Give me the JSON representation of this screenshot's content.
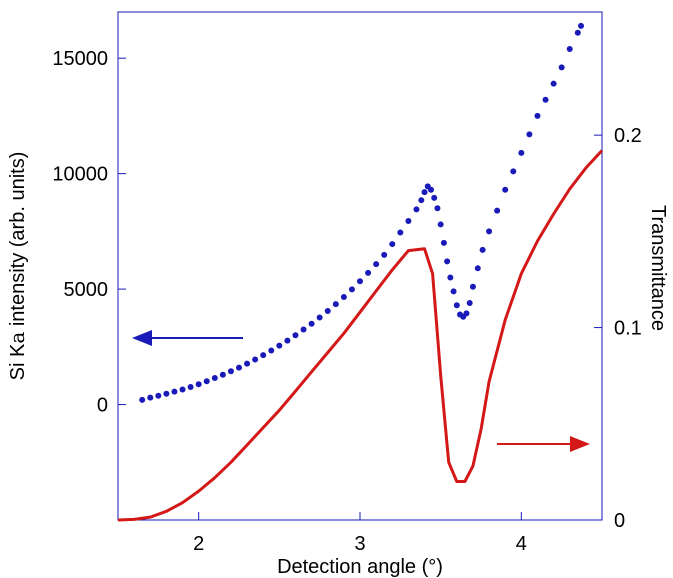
{
  "chart_data": {
    "type": "scatter+line",
    "xlabel": "Detection angle (°)",
    "ylabel_left_parts": [
      "Si K",
      "a",
      " intensity (arb. units)"
    ],
    "ylabel_right": "Transmittance",
    "xlim": [
      1.5,
      4.5
    ],
    "ylim_left": [
      -5000,
      17000
    ],
    "ylim_right": [
      0,
      0.264
    ],
    "x_ticks": [
      2,
      3,
      4
    ],
    "x_tick_labels": [
      "2",
      "3",
      "4"
    ],
    "y_left_ticks": [
      0,
      5000,
      10000,
      15000
    ],
    "y_left_tick_labels": [
      "0",
      "5000",
      "10000",
      "15000"
    ],
    "y_right_ticks": [
      0,
      0.1,
      0.2
    ],
    "y_right_tick_labels": [
      "0",
      "0.1",
      "0.2"
    ],
    "grid": false,
    "series": [
      {
        "kind": "scatter",
        "axis": "left",
        "color": "#1a1ab8",
        "points": [
          [
            1.65,
            200
          ],
          [
            1.7,
            300
          ],
          [
            1.75,
            380
          ],
          [
            1.8,
            470
          ],
          [
            1.85,
            560
          ],
          [
            1.9,
            650
          ],
          [
            1.95,
            760
          ],
          [
            2.0,
            880
          ],
          [
            2.05,
            1010
          ],
          [
            2.1,
            1150
          ],
          [
            2.15,
            1290
          ],
          [
            2.2,
            1440
          ],
          [
            2.25,
            1600
          ],
          [
            2.3,
            1770
          ],
          [
            2.35,
            1950
          ],
          [
            2.4,
            2140
          ],
          [
            2.45,
            2340
          ],
          [
            2.5,
            2550
          ],
          [
            2.55,
            2770
          ],
          [
            2.6,
            3000
          ],
          [
            2.65,
            3250
          ],
          [
            2.7,
            3500
          ],
          [
            2.75,
            3770
          ],
          [
            2.8,
            4050
          ],
          [
            2.85,
            4350
          ],
          [
            2.9,
            4660
          ],
          [
            2.95,
            4990
          ],
          [
            3.0,
            5340
          ],
          [
            3.05,
            5700
          ],
          [
            3.1,
            6080
          ],
          [
            3.15,
            6480
          ],
          [
            3.2,
            6950
          ],
          [
            3.25,
            7450
          ],
          [
            3.3,
            7950
          ],
          [
            3.35,
            8450
          ],
          [
            3.38,
            8850
          ],
          [
            3.4,
            9200
          ],
          [
            3.42,
            9450
          ],
          [
            3.44,
            9300
          ],
          [
            3.46,
            8950
          ],
          [
            3.48,
            8500
          ],
          [
            3.5,
            7800
          ],
          [
            3.52,
            7000
          ],
          [
            3.54,
            6200
          ],
          [
            3.56,
            5500
          ],
          [
            3.58,
            4900
          ],
          [
            3.6,
            4300
          ],
          [
            3.62,
            3900
          ],
          [
            3.64,
            3800
          ],
          [
            3.66,
            3950
          ],
          [
            3.68,
            4400
          ],
          [
            3.7,
            5100
          ],
          [
            3.73,
            5900
          ],
          [
            3.76,
            6700
          ],
          [
            3.8,
            7500
          ],
          [
            3.85,
            8400
          ],
          [
            3.9,
            9300
          ],
          [
            3.95,
            10100
          ],
          [
            4.0,
            10900
          ],
          [
            4.05,
            11700
          ],
          [
            4.1,
            12500
          ],
          [
            4.15,
            13200
          ],
          [
            4.2,
            13900
          ],
          [
            4.25,
            14600
          ],
          [
            4.3,
            15400
          ],
          [
            4.35,
            16100
          ],
          [
            4.37,
            16400
          ]
        ]
      },
      {
        "kind": "line",
        "axis": "right",
        "color": "#d41818",
        "points": [
          [
            1.5,
            0.0
          ],
          [
            1.6,
            0.0003
          ],
          [
            1.7,
            0.0015
          ],
          [
            1.8,
            0.0045
          ],
          [
            1.9,
            0.009
          ],
          [
            2.0,
            0.015
          ],
          [
            2.1,
            0.022
          ],
          [
            2.2,
            0.03
          ],
          [
            2.3,
            0.039
          ],
          [
            2.4,
            0.048
          ],
          [
            2.5,
            0.057
          ],
          [
            2.6,
            0.067
          ],
          [
            2.7,
            0.077
          ],
          [
            2.8,
            0.087
          ],
          [
            2.9,
            0.097
          ],
          [
            3.0,
            0.108
          ],
          [
            3.1,
            0.119
          ],
          [
            3.2,
            0.13
          ],
          [
            3.3,
            0.14
          ],
          [
            3.4,
            0.141
          ],
          [
            3.45,
            0.128
          ],
          [
            3.5,
            0.075
          ],
          [
            3.55,
            0.03
          ],
          [
            3.6,
            0.02
          ],
          [
            3.65,
            0.02
          ],
          [
            3.7,
            0.028
          ],
          [
            3.75,
            0.047
          ],
          [
            3.8,
            0.072
          ],
          [
            3.9,
            0.104
          ],
          [
            4.0,
            0.128
          ],
          [
            4.1,
            0.145
          ],
          [
            4.2,
            0.159
          ],
          [
            4.3,
            0.172
          ],
          [
            4.4,
            0.183
          ],
          [
            4.5,
            0.192
          ]
        ]
      }
    ],
    "annotations": [
      {
        "type": "arrow",
        "direction": "left",
        "color": "#1a1ab8",
        "meaning": "left axis"
      },
      {
        "type": "arrow",
        "direction": "right",
        "color": "#d41818",
        "meaning": "right axis"
      }
    ]
  }
}
